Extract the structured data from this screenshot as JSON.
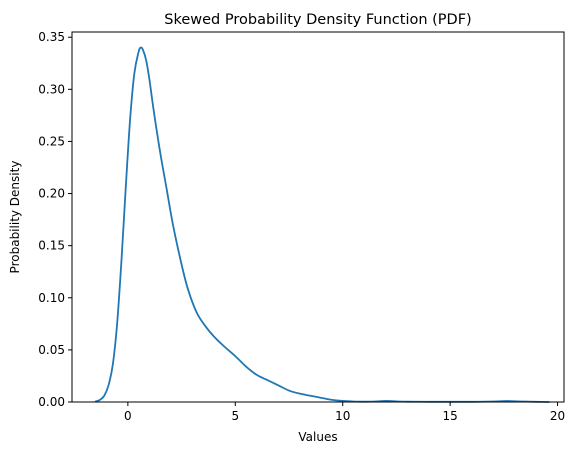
{
  "chart_data": {
    "type": "line",
    "title": "Skewed Probability Density Function (PDF)",
    "xlabel": "Values",
    "ylabel": "Probability Density",
    "xlim": [
      -2.6,
      20.3
    ],
    "ylim": [
      0,
      0.355
    ],
    "xticks": [
      0,
      5,
      10,
      15,
      20
    ],
    "xtick_labels": [
      "0",
      "5",
      "10",
      "15",
      "20"
    ],
    "yticks": [
      0,
      0.05,
      0.1,
      0.15,
      0.2,
      0.25,
      0.3,
      0.35
    ],
    "ytick_labels": [
      "0.00",
      "0.05",
      "0.10",
      "0.15",
      "0.20",
      "0.25",
      "0.30",
      "0.35"
    ],
    "grid": false,
    "legend": "none",
    "series": [
      {
        "color": "#1f77b4",
        "x": [
          -1.5,
          -1.3,
          -1.1,
          -0.9,
          -0.7,
          -0.5,
          -0.3,
          -0.1,
          0.1,
          0.3,
          0.5,
          0.6,
          0.7,
          0.85,
          1.0,
          1.2,
          1.5,
          1.8,
          2.1,
          2.5,
          2.8,
          3.2,
          3.6,
          4.0,
          4.5,
          5.0,
          5.5,
          6.0,
          6.5,
          7.0,
          7.5,
          8.0,
          8.5,
          9.0,
          9.5,
          10.0,
          10.5,
          11.0,
          11.5,
          12.0,
          12.5,
          13.0,
          14.0,
          15.0,
          16.0,
          17.0,
          17.6,
          18.0,
          18.5,
          19.0,
          19.6
        ],
        "y": [
          0.0005,
          0.002,
          0.006,
          0.016,
          0.036,
          0.075,
          0.135,
          0.205,
          0.27,
          0.315,
          0.336,
          0.34,
          0.338,
          0.328,
          0.31,
          0.28,
          0.24,
          0.205,
          0.17,
          0.132,
          0.108,
          0.086,
          0.073,
          0.063,
          0.053,
          0.044,
          0.034,
          0.026,
          0.021,
          0.016,
          0.011,
          0.008,
          0.006,
          0.004,
          0.002,
          0.001,
          0.0005,
          0.0003,
          0.0005,
          0.001,
          0.0006,
          0.0003,
          0.0002,
          0.0002,
          0.0002,
          0.0005,
          0.0009,
          0.0007,
          0.0004,
          0.0002,
          0.0
        ]
      }
    ]
  }
}
